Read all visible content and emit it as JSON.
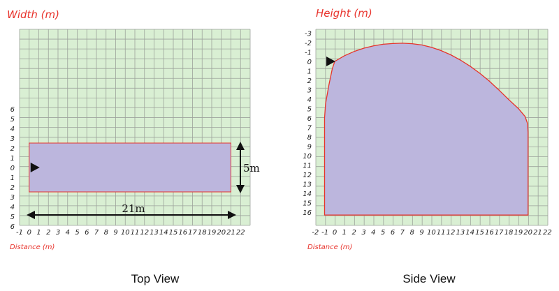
{
  "top_view": {
    "title": "Top View",
    "y_axis_title": "Width (m)",
    "x_axis_title": "Distance (m)",
    "x_ticks": [
      "-1",
      "0",
      "1",
      "2",
      "3",
      "4",
      "5",
      "6",
      "7",
      "8",
      "9",
      "10",
      "11",
      "12",
      "13",
      "14",
      "15",
      "16",
      "17",
      "18",
      "19",
      "20",
      "21",
      "22"
    ],
    "y_ticks": [
      "6",
      "5",
      "4",
      "3",
      "2",
      "1",
      "0",
      "1",
      "2",
      "3",
      "4",
      "5",
      "6"
    ],
    "length_label": "21m",
    "width_label": "5m",
    "coverage": {
      "x_from": 0,
      "x_to": 21,
      "y_from": -2.5,
      "y_to": 2.5
    },
    "sensor": {
      "x": 0,
      "y": 0
    }
  },
  "side_view": {
    "title": "Side View",
    "y_axis_title": "Height (m)",
    "x_axis_title": "Distance (m)",
    "x_ticks": [
      "-2",
      "-1",
      "0",
      "1",
      "2",
      "3",
      "4",
      "5",
      "6",
      "7",
      "8",
      "9",
      "10",
      "11",
      "12",
      "13",
      "14",
      "15",
      "16",
      "17",
      "18",
      "19",
      "20",
      "21",
      "22"
    ],
    "y_ticks": [
      "-3",
      "-2",
      "-1",
      "0",
      "1",
      "2",
      "3",
      "4",
      "5",
      "6",
      "7",
      "8",
      "9",
      "10",
      "11",
      "12",
      "13",
      "14",
      "15",
      "16"
    ],
    "coverage_outline": [
      [
        -1.05,
        16.3
      ],
      [
        -1.05,
        6
      ],
      [
        -0.95,
        4.5
      ],
      [
        -0.6,
        2.5
      ],
      [
        -0.25,
        0.8
      ],
      [
        0,
        0
      ],
      [
        1,
        -0.6
      ],
      [
        2,
        -1.05
      ],
      [
        3,
        -1.4
      ],
      [
        4,
        -1.65
      ],
      [
        5,
        -1.82
      ],
      [
        6,
        -1.9
      ],
      [
        7,
        -1.93
      ],
      [
        8,
        -1.88
      ],
      [
        9,
        -1.75
      ],
      [
        10,
        -1.5
      ],
      [
        11,
        -1.15
      ],
      [
        12,
        -0.7
      ],
      [
        13,
        -0.15
      ],
      [
        14,
        0.5
      ],
      [
        15,
        1.25
      ],
      [
        16,
        2.1
      ],
      [
        17,
        3.05
      ],
      [
        18,
        4.05
      ],
      [
        19,
        5.0
      ],
      [
        19.7,
        5.85
      ],
      [
        19.95,
        6.6
      ],
      [
        20,
        7.5
      ],
      [
        20,
        16.3
      ]
    ],
    "sensor": {
      "x": 0,
      "y": 0
    }
  },
  "colors": {
    "grid_bg": "#d9efd3",
    "grid_line": "#9da39c",
    "coverage_fill": "#bcb6dd",
    "coverage_stroke": "#e6332a",
    "axis_title": "#e8332c",
    "text": "#222222"
  }
}
